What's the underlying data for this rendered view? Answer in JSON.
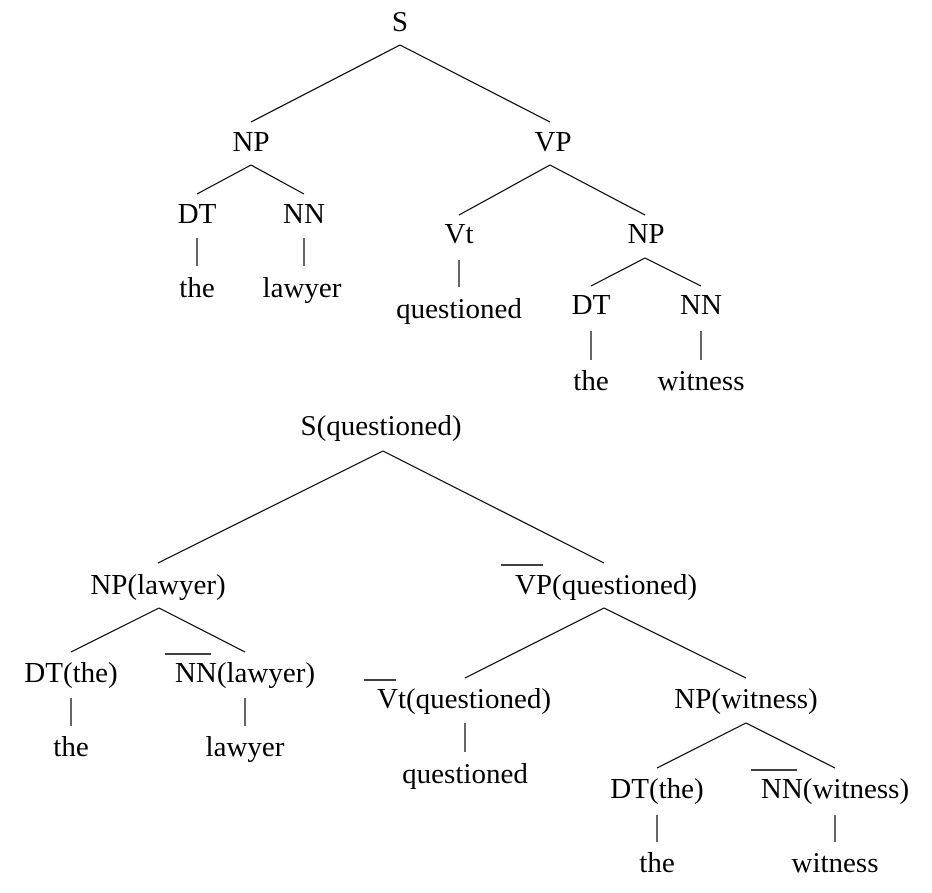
{
  "tree1": {
    "root": "S",
    "np": "NP",
    "np_dt": "DT",
    "np_nn": "NN",
    "np_dt_word": "the",
    "np_nn_word": "lawyer",
    "vp": "VP",
    "vt": "Vt",
    "vt_word": "questioned",
    "obj_np": "NP",
    "obj_dt": "DT",
    "obj_nn": "NN",
    "obj_dt_word": "the",
    "obj_nn_word": "witness"
  },
  "tree2": {
    "root": "S(questioned)",
    "np": "NP(lawyer)",
    "np_dt": "DT(the)",
    "np_nn_bar": "NN",
    "np_nn_head": "(lawyer)",
    "np_dt_word": "the",
    "np_nn_word": "lawyer",
    "vp_bar": "VP",
    "vp_head": "(questioned)",
    "vt_bar": "Vt",
    "vt_head": "(questioned)",
    "vt_word": "questioned",
    "obj_np": "NP(witness)",
    "obj_dt": "DT(the)",
    "obj_nn_bar": "NN",
    "obj_nn_head": "(witness)",
    "obj_dt_word": "the",
    "obj_nn_word": "witness"
  }
}
